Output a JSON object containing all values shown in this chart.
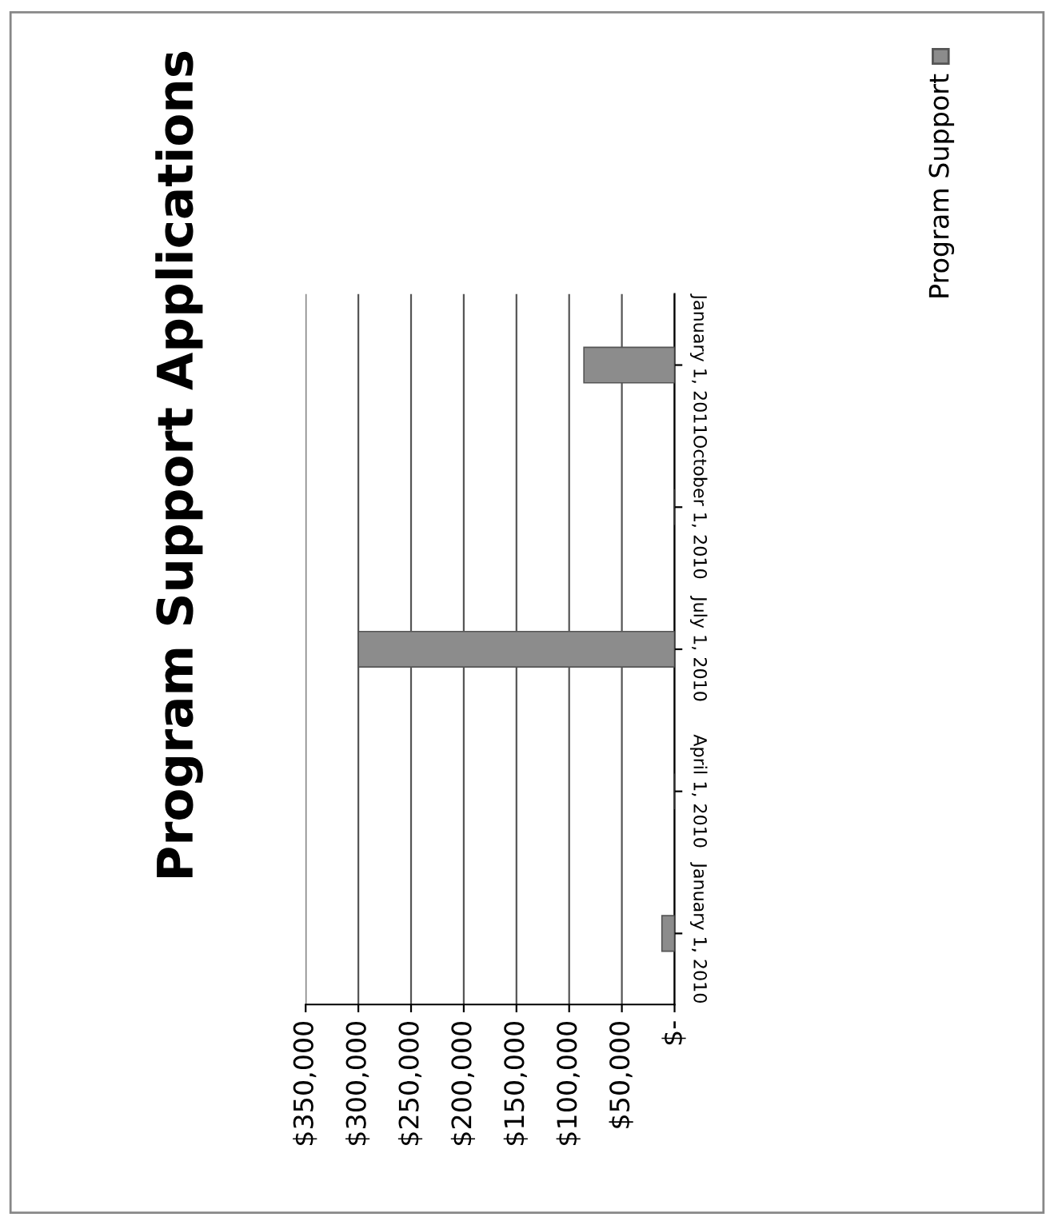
{
  "chart_data": {
    "type": "bar",
    "orientation": "horizontal",
    "title": "Program Support Applications",
    "categories": [
      "January 1, 2011",
      "October 1, 2010",
      "July 1, 2010",
      "April 1, 2010",
      "January 1, 2010"
    ],
    "series": [
      {
        "name": "Program Support",
        "color": "#8c8c8c",
        "values": [
          86000,
          null,
          300000,
          null,
          12000
        ]
      }
    ],
    "xlim": [
      350000,
      0
    ],
    "xticks": [
      {
        "value": 0,
        "label": "$-"
      },
      {
        "value": 50000,
        "label": "$50,000"
      },
      {
        "value": 100000,
        "label": "$100,000"
      },
      {
        "value": 150000,
        "label": "$150,000"
      },
      {
        "value": 200000,
        "label": "$200,000"
      },
      {
        "value": 250000,
        "label": "$250,000"
      },
      {
        "value": 300000,
        "label": "$300,000"
      },
      {
        "value": 350000,
        "label": "$350,000"
      }
    ],
    "grid": "x",
    "legend": "right"
  }
}
